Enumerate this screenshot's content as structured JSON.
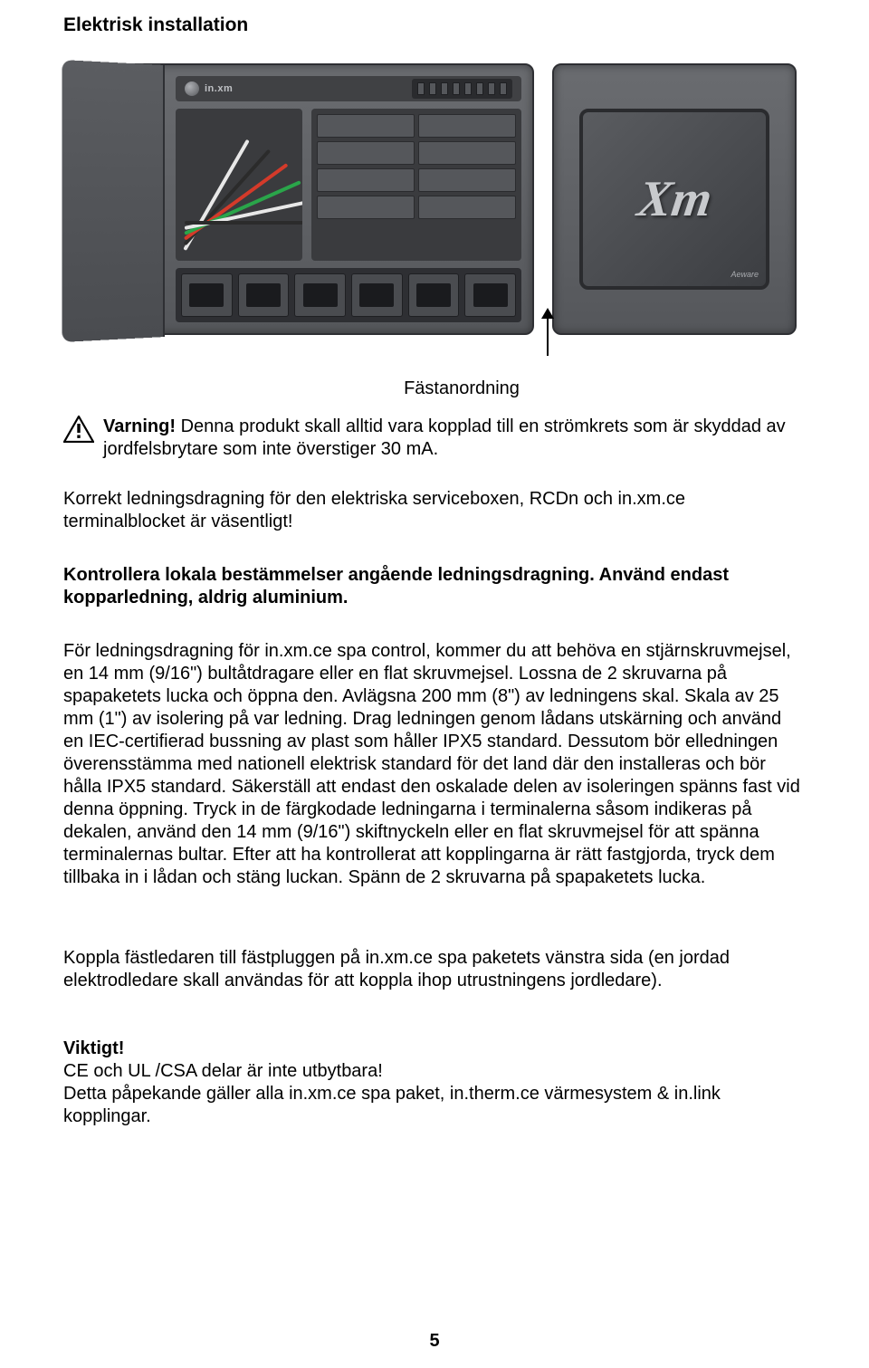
{
  "title": "Elektrisk installation",
  "figure": {
    "brand_label": "in.xm",
    "screen_logo": "Xm",
    "corner_badge": "Aeware",
    "port_count": 6,
    "led_count": 8,
    "device_colors": {
      "body": "#6a6c70",
      "body_dark": "#55575b",
      "border": "#2e2f33",
      "panel": "#3a3b3e",
      "chip": "#55575b",
      "port_bg": "#2e2f33",
      "port": "#4a4c50",
      "port_hole": "#1a1b1e",
      "screen_border": "#2a2b2e",
      "logo_color": "#c8cacd"
    },
    "wire_colors": [
      "#e8e8e8",
      "#2b2b2b",
      "#d43a2a",
      "#2aa54a",
      "#e8e8e8",
      "#2b2b2b"
    ]
  },
  "callout_label": "Fästanordning",
  "warning": {
    "label": "Varning!",
    "text": " Denna produkt skall alltid vara kopplad till en strömkrets som är skyddad av jordfelsbrytare som inte överstiger 30 mA."
  },
  "para_intro": "Korrekt ledningsdragning för den elektriska serviceboxen, RCDn och in.xm.ce terminalblocket är väsentligt!",
  "para_bold": "Kontrollera lokala bestämmelser angående ledningsdragning. Använd endast kopparledning, aldrig aluminium.",
  "para_main": "För ledningsdragning för in.xm.ce spa control, kommer du att behöva en stjärnskruvmejsel, en 14 mm (9/16\") bultåtdragare eller en flat skruvmejsel. Lossna de 2 skruvarna på spapaketets lucka och öppna den. Avlägsna 200 mm (8\") av ledningens skal. Skala av 25 mm (1\") av isolering på var ledning. Drag ledningen genom lådans utskärning och använd en IEC-certifierad bussning av plast som håller IPX5 standard. Dessutom bör elledningen överensstämma med nationell elektrisk standard för det land där den installeras och bör hålla IPX5 standard. Säkerställ att endast den oskalade delen av isoleringen spänns fast vid denna öppning. Tryck in de färgkodade ledningarna i terminalerna såsom indikeras på dekalen, använd den 14 mm (9/16\") skiftnyckeln eller en flat skruvmejsel för att spänna terminalernas bultar. Efter att ha kontrollerat att kopplingarna är rätt fastgjorda, tryck dem tillbaka in i lådan och stäng luckan. Spänn de 2 skruvarna på spapaketets lucka.",
  "para_bonding": "Koppla fästledaren till fästpluggen på in.xm.ce spa paketets vänstra sida (en jordad elektrodledare skall användas för att koppla ihop utrustningens jordledare).",
  "important": {
    "heading": "Viktigt!",
    "line1": "CE och UL /CSA delar är inte utbytbara!",
    "line2": "Detta påpekande gäller alla in.xm.ce spa paket, in.therm.ce värmesystem & in.link kopplingar."
  },
  "page_number": "5",
  "icon_colors": {
    "stroke": "#000000",
    "fill": "#ffffff"
  }
}
